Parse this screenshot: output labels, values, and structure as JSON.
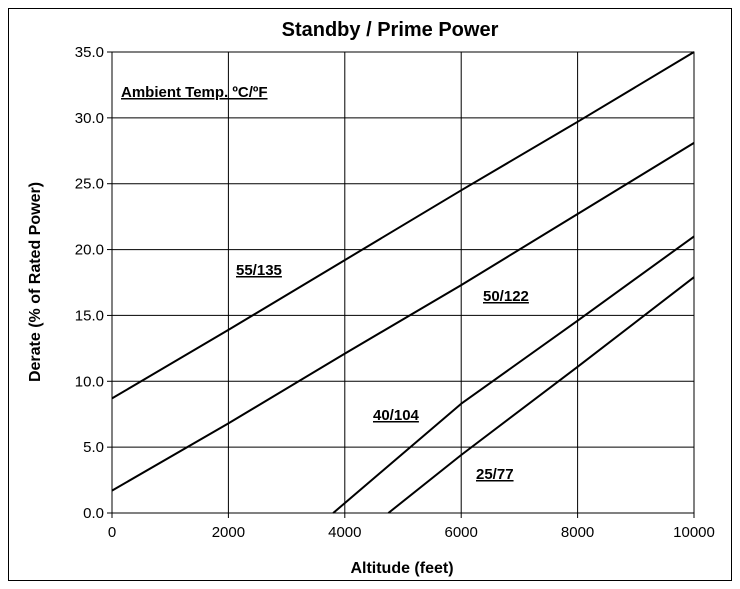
{
  "chart_data": {
    "type": "line",
    "title": "Standby / Prime Power",
    "xlabel": "Altitude (feet)",
    "ylabel": "Derate (% of Rated Power)",
    "xlim": [
      0,
      10000
    ],
    "ylim": [
      0,
      35
    ],
    "xticks": [
      "0",
      "2000",
      "4000",
      "6000",
      "8000",
      "10000"
    ],
    "yticks": [
      "0.0",
      "5.0",
      "10.0",
      "15.0",
      "20.0",
      "25.0",
      "30.0",
      "35.0"
    ],
    "grid": true,
    "annotation": "Ambient Temp. ºC/ºF",
    "series": [
      {
        "name": "55/135",
        "x": [
          0,
          2000,
          4000,
          6000,
          8000,
          10000
        ],
        "y": [
          8.7,
          13.9,
          19.2,
          24.5,
          29.7,
          35.0
        ]
      },
      {
        "name": "50/122",
        "x": [
          0,
          2000,
          4000,
          6000,
          8000,
          10000
        ],
        "y": [
          1.7,
          6.8,
          12.1,
          17.3,
          22.7,
          28.1
        ]
      },
      {
        "name": "40/104",
        "x": [
          3800,
          6000,
          8000,
          10000
        ],
        "y": [
          0.0,
          8.3,
          14.6,
          21.0
        ]
      },
      {
        "name": "25/77",
        "x": [
          4750,
          6000,
          8000,
          10000
        ],
        "y": [
          0.0,
          4.4,
          11.1,
          17.9
        ]
      }
    ],
    "series_label_styles": {
      "line_color": "#000000",
      "line_width": 2
    }
  }
}
